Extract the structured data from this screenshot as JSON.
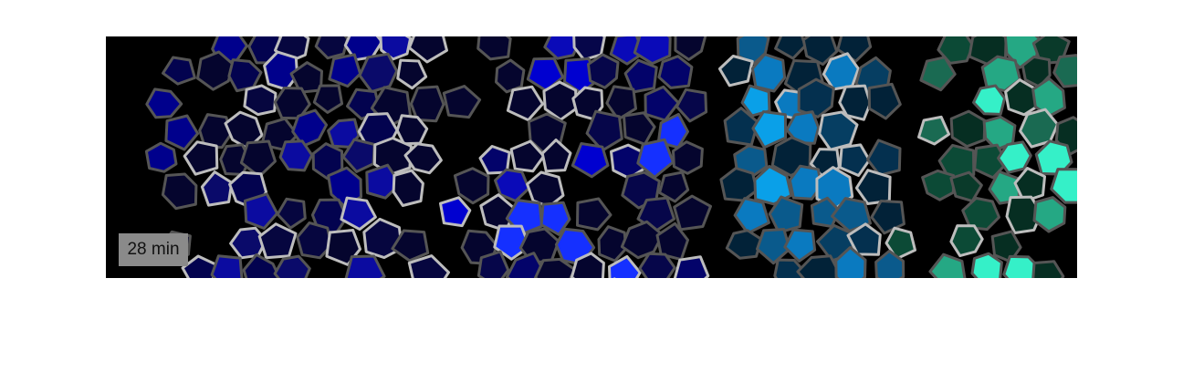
{
  "label": "28 min"
}
